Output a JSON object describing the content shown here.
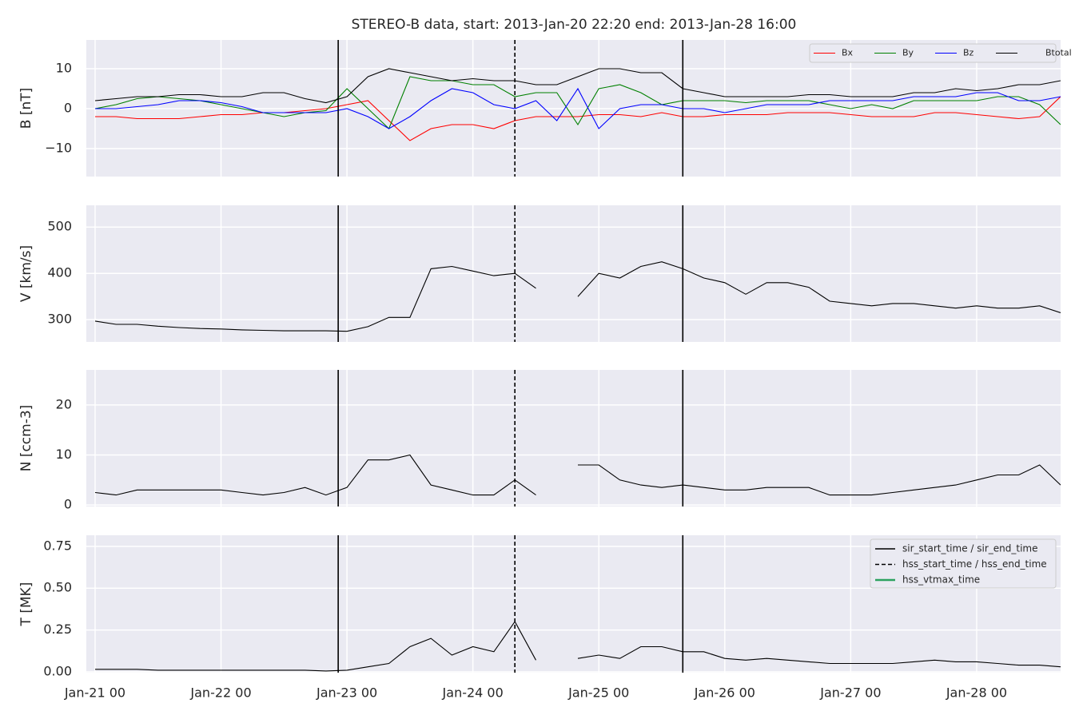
{
  "title": "STEREO-B data, start: 2013-Jan-20 22:20  end: 2013-Jan-28 16:00",
  "event_lines": [
    {
      "name": "sir_start_time / sir_end_time",
      "style": "solid",
      "color": "#000000",
      "x": [
        46.33,
        112
      ]
    },
    {
      "name": "hss_start_time / hss_end_time",
      "style": "dashed",
      "color": "#000000",
      "x": [
        80
      ]
    },
    {
      "name": "hss_vtmax_time",
      "style": "solid",
      "color": "#2ca25f"
    }
  ],
  "chart_data": [
    {
      "type": "line",
      "ylabel": "B [nT]",
      "xlim": [
        -1.67,
        184
      ],
      "ylim": [
        -17,
        17.2
      ],
      "grid": true,
      "legend": "upper right",
      "xticks": [
        0,
        24,
        48,
        72,
        96,
        120,
        144,
        168
      ],
      "yticks": [
        {
          "value": -10,
          "label": "−10"
        },
        0,
        10
      ],
      "x": [
        0,
        4,
        8,
        12,
        16,
        20,
        24,
        28,
        32,
        36,
        40,
        44,
        48,
        52,
        56,
        60,
        64,
        68,
        72,
        76,
        80,
        84,
        88,
        92,
        96,
        100,
        104,
        108,
        112,
        116,
        120,
        124,
        128,
        132,
        136,
        140,
        144,
        148,
        152,
        156,
        160,
        164,
        168,
        172,
        176,
        180,
        184
      ],
      "series": [
        {
          "name": "Bx",
          "color": "#ff0000",
          "values": [
            -2,
            -2,
            -2.5,
            -2.5,
            -2.5,
            -2,
            -1.5,
            -1.5,
            -1,
            -1,
            -0.5,
            0,
            1,
            2,
            -3,
            -8,
            -5,
            -4,
            -4,
            -5,
            -3,
            -2,
            -2,
            -2,
            -1.5,
            -1.5,
            -2,
            -1,
            -2,
            -2,
            -1.5,
            -1.5,
            -1.5,
            -1,
            -1,
            -1,
            -1.5,
            -2,
            -2,
            -2,
            -1,
            -1,
            -1.5,
            -2,
            -2.5,
            -2,
            3
          ]
        },
        {
          "name": "By",
          "color": "#008000",
          "values": [
            0,
            1,
            2.5,
            3,
            2.5,
            2,
            1,
            0,
            -1,
            -2,
            -1,
            -0.5,
            5,
            0,
            -5,
            8,
            7,
            7,
            6,
            6,
            3,
            4,
            4,
            -4,
            5,
            6,
            4,
            1,
            2,
            2,
            2,
            1.5,
            2,
            2,
            2,
            1,
            0,
            1,
            0,
            2,
            2,
            2,
            2,
            3,
            3,
            1,
            -4
          ]
        },
        {
          "name": "Bz",
          "color": "#0000ff",
          "values": [
            0,
            0,
            0.5,
            1,
            2,
            2,
            1.5,
            0.5,
            -1,
            -1,
            -1,
            -1,
            0,
            -2,
            -5,
            -2,
            2,
            5,
            4,
            1,
            0,
            2,
            -3,
            5,
            -5,
            0,
            1,
            1,
            0,
            0,
            -1,
            0,
            1,
            1,
            1,
            2,
            2,
            2,
            2,
            3,
            3,
            3,
            4,
            4,
            2,
            2,
            3
          ]
        },
        {
          "name": "Btotal",
          "color": "#000000",
          "values": [
            2,
            2.5,
            3,
            3,
            3.5,
            3.5,
            3,
            3,
            4,
            4,
            2.5,
            1.5,
            3,
            8,
            10,
            9,
            8,
            7,
            7.5,
            7,
            7,
            6,
            6,
            8,
            10,
            10,
            9,
            9,
            5,
            4,
            3,
            3,
            3,
            3,
            3.5,
            3.5,
            3,
            3,
            3,
            4,
            4,
            5,
            4.5,
            5,
            6,
            6,
            7
          ]
        }
      ]
    },
    {
      "type": "line",
      "ylabel": "V [km/s]",
      "xlim": [
        -1.67,
        184
      ],
      "ylim": [
        252,
        547
      ],
      "grid": true,
      "xticks": [
        0,
        24,
        48,
        72,
        96,
        120,
        144,
        168
      ],
      "yticks": [
        300,
        400,
        500
      ],
      "x": [
        0,
        4,
        8,
        12,
        16,
        20,
        24,
        28,
        32,
        36,
        40,
        44,
        48,
        52,
        56,
        60,
        64,
        68,
        72,
        76,
        80,
        84,
        88,
        92,
        96,
        100,
        104,
        108,
        112,
        116,
        120,
        124,
        128,
        132,
        136,
        140,
        144,
        148,
        152,
        156,
        160,
        164,
        168,
        172,
        176,
        180,
        184
      ],
      "series": [
        {
          "name": "V",
          "color": "#000000",
          "values": [
            297,
            290,
            290,
            286,
            283,
            281,
            280,
            278,
            277,
            276,
            276,
            276,
            275,
            285,
            305,
            305,
            410,
            415,
            405,
            395,
            400,
            368,
            null,
            350,
            400,
            390,
            415,
            425,
            410,
            390,
            380,
            355,
            380,
            380,
            370,
            340,
            335,
            330,
            335,
            335,
            330,
            325,
            330,
            325,
            325,
            330,
            315
          ]
        }
      ]
    },
    {
      "type": "line",
      "ylabel": "N [ccm-3]",
      "xlim": [
        -1.67,
        184
      ],
      "ylim": [
        -0.3,
        27
      ],
      "grid": true,
      "xticks": [
        0,
        24,
        48,
        72,
        96,
        120,
        144,
        168
      ],
      "yticks": [
        0,
        10,
        20
      ],
      "x": [
        0,
        4,
        8,
        12,
        16,
        20,
        24,
        28,
        32,
        36,
        40,
        44,
        48,
        52,
        56,
        60,
        64,
        68,
        72,
        76,
        80,
        84,
        88,
        92,
        96,
        100,
        104,
        108,
        112,
        116,
        120,
        124,
        128,
        132,
        136,
        140,
        144,
        148,
        152,
        156,
        160,
        164,
        168,
        172,
        176,
        180,
        184
      ],
      "series": [
        {
          "name": "N",
          "color": "#000000",
          "values": [
            2.5,
            2,
            3,
            3,
            3,
            3,
            3,
            2.5,
            2,
            2.5,
            3.5,
            2,
            3.5,
            9,
            9,
            10,
            4,
            3,
            2,
            2,
            5,
            2,
            null,
            8,
            8,
            5,
            4,
            3.5,
            4,
            3.5,
            3,
            3,
            3.5,
            3.5,
            3.5,
            2,
            2,
            2,
            2.5,
            3,
            3.5,
            4,
            5,
            6,
            6,
            8,
            4
          ]
        }
      ]
    },
    {
      "type": "line",
      "ylabel": "T [MK]",
      "xlim": [
        -1.67,
        184
      ],
      "ylim": [
        -0.005,
        0.816
      ],
      "grid": true,
      "legend": "upper right",
      "xticks": [
        {
          "value": 0,
          "label": "Jan-21 00"
        },
        {
          "value": 24,
          "label": "Jan-22 00"
        },
        {
          "value": 48,
          "label": "Jan-23 00"
        },
        {
          "value": 72,
          "label": "Jan-24 00"
        },
        {
          "value": 96,
          "label": "Jan-25 00"
        },
        {
          "value": 120,
          "label": "Jan-26 00"
        },
        {
          "value": 144,
          "label": "Jan-27 00"
        },
        {
          "value": 168,
          "label": "Jan-28 00"
        }
      ],
      "yticks": [
        {
          "value": 0,
          "label": "0.00"
        },
        0.25,
        {
          "value": 0.5,
          "label": "0.50"
        },
        0.75
      ],
      "x": [
        0,
        4,
        8,
        12,
        16,
        20,
        24,
        28,
        32,
        36,
        40,
        44,
        48,
        52,
        56,
        60,
        64,
        68,
        72,
        76,
        80,
        84,
        88,
        92,
        96,
        100,
        104,
        108,
        112,
        116,
        120,
        124,
        128,
        132,
        136,
        140,
        144,
        148,
        152,
        156,
        160,
        164,
        168,
        172,
        176,
        180,
        184
      ],
      "series": [
        {
          "name": "T",
          "color": "#000000",
          "values": [
            0.015,
            0.015,
            0.015,
            0.01,
            0.01,
            0.01,
            0.01,
            0.01,
            0.01,
            0.01,
            0.01,
            0.005,
            0.01,
            0.03,
            0.05,
            0.15,
            0.2,
            0.1,
            0.15,
            0.12,
            0.3,
            0.07,
            null,
            0.08,
            0.1,
            0.08,
            0.15,
            0.15,
            0.12,
            0.12,
            0.08,
            0.07,
            0.08,
            0.07,
            0.06,
            0.05,
            0.05,
            0.05,
            0.05,
            0.06,
            0.07,
            0.06,
            0.06,
            0.05,
            0.04,
            0.04,
            0.03
          ]
        }
      ]
    }
  ]
}
